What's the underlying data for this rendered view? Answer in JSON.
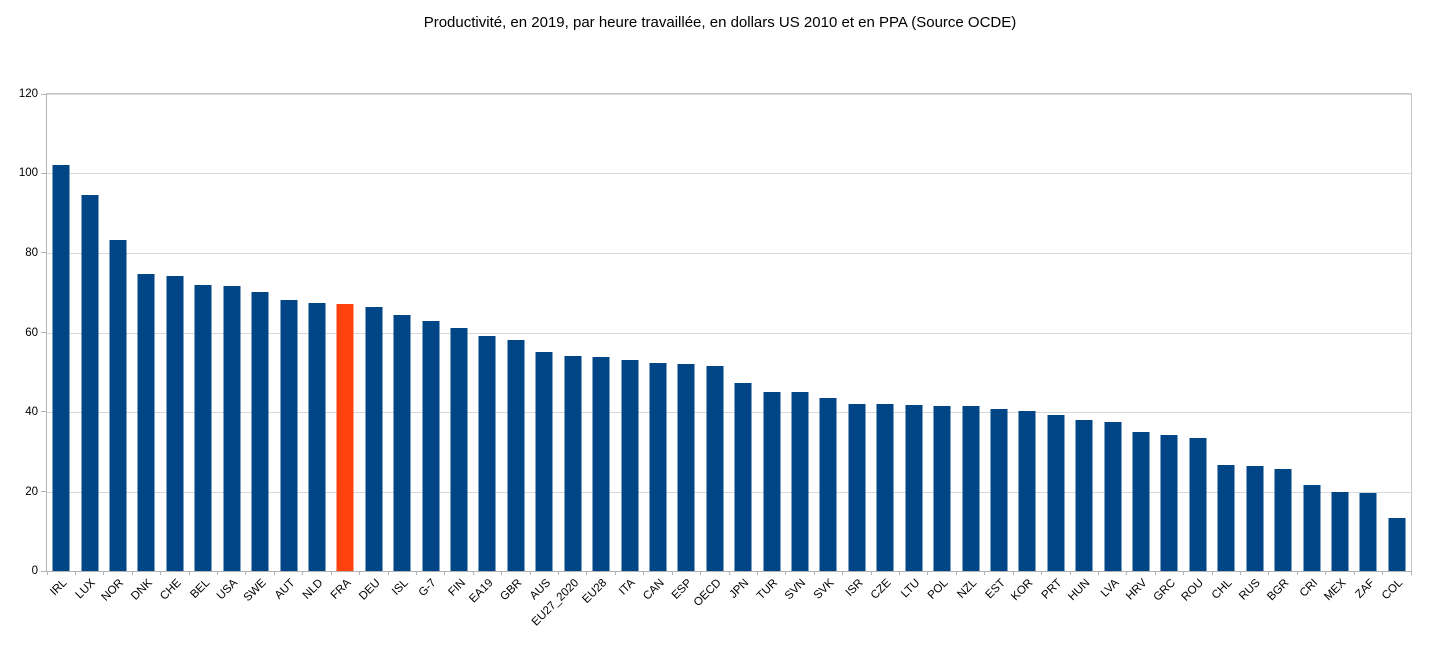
{
  "title": "Productivité, en 2019, par heure travaillée, en dollars US 2010 et en PPA (Source OCDE)",
  "colors": {
    "bar": "#004586",
    "highlight": "#FF420E",
    "gridline": "#D9D9D9",
    "axis": "#B3B3B3",
    "text": "#000000",
    "background": "#FFFFFF"
  },
  "chart_data": {
    "type": "bar",
    "title": "Productivité, en 2019, par heure travaillée, en dollars US 2010 et en PPA (Source OCDE)",
    "xlabel": "",
    "ylabel": "",
    "ylim": [
      0,
      120
    ],
    "yticks": [
      0,
      20,
      40,
      60,
      80,
      100,
      120
    ],
    "grid": "horizontal",
    "legend": "none",
    "bar_color": "#004586",
    "highlight": {
      "category": "FRA",
      "color": "#FF420E"
    },
    "categories": [
      "IRL",
      "LUX",
      "NOR",
      "DNK",
      "CHE",
      "BEL",
      "USA",
      "SWE",
      "AUT",
      "NLD",
      "FRA",
      "DEU",
      "ISL",
      "G-7",
      "FIN",
      "EA19",
      "GBR",
      "AUS",
      "EU27_2020",
      "EU28",
      "ITA",
      "CAN",
      "ESP",
      "OECD",
      "JPN",
      "TUR",
      "SVN",
      "SVK",
      "ISR",
      "CZE",
      "LTU",
      "POL",
      "NZL",
      "EST",
      "KOR",
      "PRT",
      "HUN",
      "LVA",
      "HRV",
      "GRC",
      "ROU",
      "CHL",
      "RUS",
      "BGR",
      "CRI",
      "MEX",
      "ZAF",
      "COL"
    ],
    "values": [
      102.2,
      94.6,
      83.4,
      74.6,
      74.2,
      71.9,
      71.7,
      70.1,
      68.1,
      67.5,
      67.2,
      66.4,
      64.3,
      62.9,
      61.2,
      59.2,
      58.1,
      55.0,
      54.1,
      53.8,
      53.0,
      52.4,
      52.1,
      51.7,
      47.4,
      45.1,
      45.0,
      43.5,
      42.1,
      42.0,
      41.8,
      41.5,
      41.4,
      40.8,
      40.2,
      39.2,
      37.9,
      37.5,
      34.9,
      34.1,
      33.5,
      26.6,
      26.3,
      25.7,
      21.7,
      20.0,
      19.6,
      13.4
    ]
  }
}
